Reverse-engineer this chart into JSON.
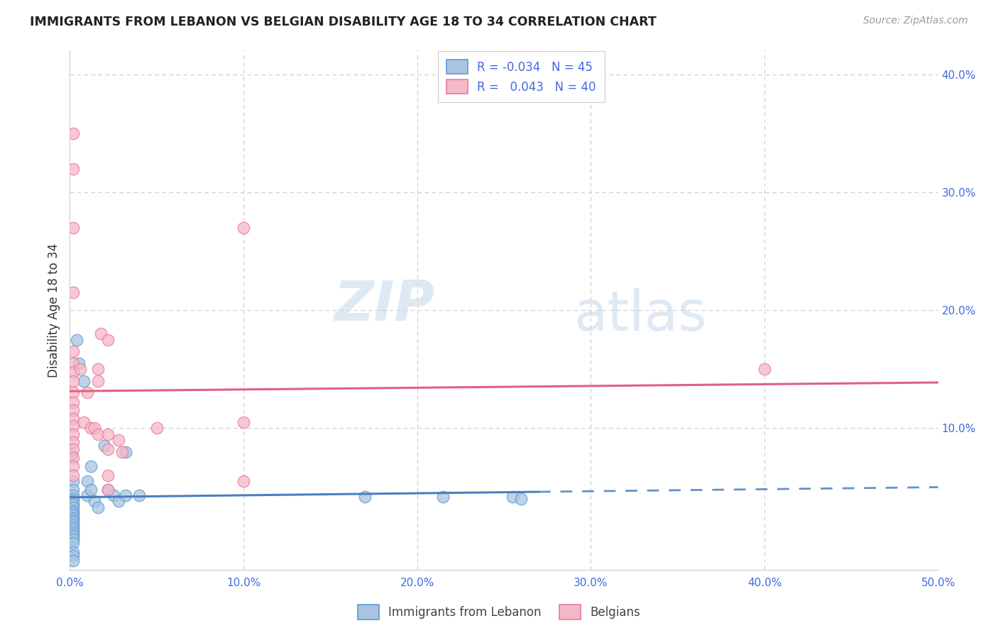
{
  "title": "IMMIGRANTS FROM LEBANON VS BELGIAN DISABILITY AGE 18 TO 34 CORRELATION CHART",
  "source": "Source: ZipAtlas.com",
  "ylabel": "Disability Age 18 to 34",
  "xlim": [
    0.0,
    0.5
  ],
  "ylim": [
    -0.02,
    0.42
  ],
  "legend_R1": "-0.034",
  "legend_N1": "45",
  "legend_R2": "0.043",
  "legend_N2": "40",
  "legend_label1": "Immigrants from Lebanon",
  "legend_label2": "Belgians",
  "color_blue_fill": "#a8c4e0",
  "color_blue_edge": "#5b9bd5",
  "color_pink_fill": "#f4b8c8",
  "color_pink_edge": "#e87a9a",
  "color_blue_line": "#4a7fc0",
  "color_pink_line": "#e06080",
  "color_axis_text": "#4169E1",
  "color_title": "#222222",
  "color_source": "#999999",
  "color_grid": "#cccccc",
  "blue_scatter": [
    [
      0.001,
      0.078
    ],
    [
      0.002,
      0.055
    ],
    [
      0.002,
      0.048
    ],
    [
      0.002,
      0.043
    ],
    [
      0.002,
      0.04
    ],
    [
      0.002,
      0.038
    ],
    [
      0.002,
      0.035
    ],
    [
      0.002,
      0.033
    ],
    [
      0.002,
      0.03
    ],
    [
      0.002,
      0.028
    ],
    [
      0.002,
      0.026
    ],
    [
      0.002,
      0.024
    ],
    [
      0.002,
      0.022
    ],
    [
      0.002,
      0.02
    ],
    [
      0.002,
      0.018
    ],
    [
      0.002,
      0.016
    ],
    [
      0.002,
      0.014
    ],
    [
      0.002,
      0.012
    ],
    [
      0.002,
      0.01
    ],
    [
      0.002,
      0.008
    ],
    [
      0.002,
      0.006
    ],
    [
      0.002,
      0.003
    ],
    [
      0.002,
      -0.005
    ],
    [
      0.002,
      -0.008
    ],
    [
      0.002,
      -0.012
    ],
    [
      0.004,
      0.175
    ],
    [
      0.005,
      0.155
    ],
    [
      0.008,
      0.14
    ],
    [
      0.01,
      0.055
    ],
    [
      0.01,
      0.043
    ],
    [
      0.012,
      0.068
    ],
    [
      0.012,
      0.048
    ],
    [
      0.014,
      0.038
    ],
    [
      0.016,
      0.033
    ],
    [
      0.02,
      0.085
    ],
    [
      0.022,
      0.048
    ],
    [
      0.025,
      0.043
    ],
    [
      0.028,
      0.038
    ],
    [
      0.032,
      0.08
    ],
    [
      0.032,
      0.043
    ],
    [
      0.04,
      0.043
    ],
    [
      0.17,
      0.042
    ],
    [
      0.215,
      0.042
    ],
    [
      0.255,
      0.042
    ],
    [
      0.26,
      0.04
    ]
  ],
  "pink_scatter": [
    [
      0.002,
      0.35
    ],
    [
      0.002,
      0.32
    ],
    [
      0.002,
      0.27
    ],
    [
      0.002,
      0.215
    ],
    [
      0.002,
      0.165
    ],
    [
      0.002,
      0.155
    ],
    [
      0.002,
      0.148
    ],
    [
      0.002,
      0.14
    ],
    [
      0.002,
      0.13
    ],
    [
      0.002,
      0.122
    ],
    [
      0.002,
      0.115
    ],
    [
      0.002,
      0.108
    ],
    [
      0.002,
      0.102
    ],
    [
      0.002,
      0.095
    ],
    [
      0.002,
      0.088
    ],
    [
      0.002,
      0.082
    ],
    [
      0.002,
      0.075
    ],
    [
      0.002,
      0.068
    ],
    [
      0.002,
      0.06
    ],
    [
      0.006,
      0.15
    ],
    [
      0.008,
      0.105
    ],
    [
      0.01,
      0.13
    ],
    [
      0.012,
      0.1
    ],
    [
      0.014,
      0.1
    ],
    [
      0.016,
      0.15
    ],
    [
      0.016,
      0.14
    ],
    [
      0.016,
      0.095
    ],
    [
      0.018,
      0.18
    ],
    [
      0.022,
      0.175
    ],
    [
      0.022,
      0.095
    ],
    [
      0.022,
      0.082
    ],
    [
      0.022,
      0.06
    ],
    [
      0.022,
      0.048
    ],
    [
      0.028,
      0.09
    ],
    [
      0.03,
      0.08
    ],
    [
      0.05,
      0.1
    ],
    [
      0.1,
      0.27
    ],
    [
      0.1,
      0.105
    ],
    [
      0.1,
      0.055
    ],
    [
      0.4,
      0.15
    ]
  ],
  "blue_line_solid_end": 0.27,
  "blue_line_intercept": 0.075,
  "blue_line_slope": -0.1,
  "pink_line_intercept": 0.098,
  "pink_line_slope": 0.06
}
